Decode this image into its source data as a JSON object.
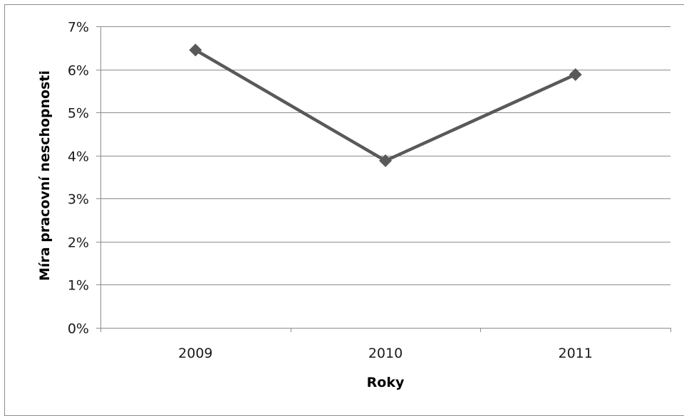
{
  "chart_data": {
    "type": "line",
    "categories": [
      "2009",
      "2010",
      "2011"
    ],
    "series": [
      {
        "values": [
          6.45,
          3.88,
          5.88
        ]
      }
    ],
    "xlabel": "Roky",
    "ylabel": "Míra pracovní neschopnosti",
    "ylim": [
      0,
      7
    ],
    "yticks": [
      "0%",
      "1%",
      "2%",
      "3%",
      "4%",
      "5%",
      "6%",
      "7%"
    ],
    "grid": true,
    "legend": "none",
    "marker": "diamond",
    "colors": {
      "series": "#595959",
      "grid": "#8c8c8c",
      "axis": "#8c8c8c",
      "frame": "#8c8c8c"
    }
  }
}
